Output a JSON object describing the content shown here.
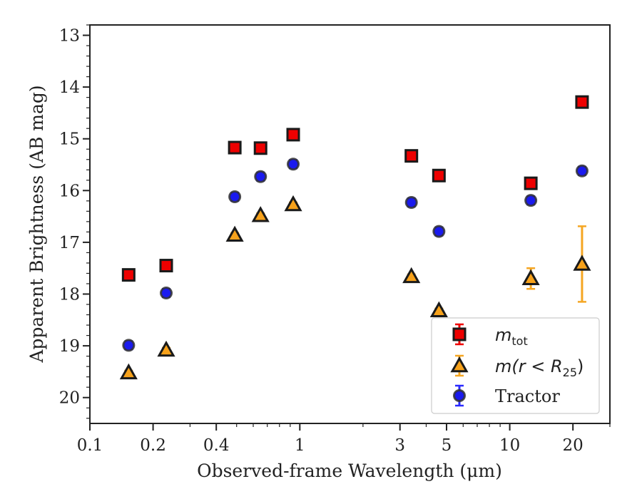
{
  "chart_data": {
    "type": "scatter",
    "title": "",
    "xlabel": "Observed-frame Wavelength (μm)",
    "ylabel": "Apparent Brightness (AB mag)",
    "xscale": "log",
    "xlim": [
      0.1,
      30
    ],
    "ylim": [
      20.5,
      12.8
    ],
    "y_inverted": true,
    "x_ticks": [
      0.1,
      0.2,
      0.4,
      1,
      3,
      5,
      10,
      20
    ],
    "x_tick_labels": [
      "0.1",
      "0.2",
      "0.4",
      "1",
      "3",
      "5",
      "10",
      "20"
    ],
    "y_ticks": [
      13,
      14,
      15,
      16,
      17,
      18,
      19,
      20
    ],
    "y_tick_labels": [
      "13",
      "14",
      "15",
      "16",
      "17",
      "18",
      "19",
      "20"
    ],
    "grid": false,
    "legend_position": "lower-right",
    "series": [
      {
        "name": "m_tot",
        "legend_main": "m",
        "legend_sub": "tot",
        "marker": "square",
        "color": "#ee0000",
        "error_color": "#ee0000",
        "points": [
          {
            "x": 0.153,
            "y": 17.63,
            "err": 0.05
          },
          {
            "x": 0.231,
            "y": 17.45,
            "err": 0.05
          },
          {
            "x": 0.49,
            "y": 15.17,
            "err": 0.05
          },
          {
            "x": 0.65,
            "y": 15.18,
            "err": 0.05
          },
          {
            "x": 0.93,
            "y": 14.92,
            "err": 0.05
          },
          {
            "x": 3.4,
            "y": 15.33,
            "err": 0.05
          },
          {
            "x": 4.6,
            "y": 15.71,
            "err": 0.05
          },
          {
            "x": 12.6,
            "y": 15.86,
            "err": 0.05
          },
          {
            "x": 22.1,
            "y": 14.29,
            "err": 0.05
          }
        ]
      },
      {
        "name": "m(r < R25)",
        "legend_main": "m(r < R",
        "legend_sub": "25",
        "legend_tail": ")",
        "marker": "triangle",
        "color": "#f7a21b",
        "error_color": "#f5a623",
        "points": [
          {
            "x": 0.153,
            "y": 19.52,
            "err": 0.04
          },
          {
            "x": 0.231,
            "y": 19.08,
            "err": 0.04
          },
          {
            "x": 0.49,
            "y": 16.86,
            "err": 0.04
          },
          {
            "x": 0.65,
            "y": 16.48,
            "err": 0.04
          },
          {
            "x": 0.93,
            "y": 16.27,
            "err": 0.04
          },
          {
            "x": 3.4,
            "y": 17.66,
            "err": 0.04
          },
          {
            "x": 4.6,
            "y": 18.32,
            "err": 0.04
          },
          {
            "x": 12.6,
            "y": 17.7,
            "err": 0.2
          },
          {
            "x": 22.1,
            "y": 17.42,
            "err": 0.73
          }
        ]
      },
      {
        "name": "Tractor",
        "marker": "circle",
        "color": "#1a1aee",
        "error_color": "#2a2aff",
        "points": [
          {
            "x": 0.153,
            "y": 18.99,
            "err": 0.08
          },
          {
            "x": 0.231,
            "y": 17.98,
            "err": 0.08
          },
          {
            "x": 0.49,
            "y": 16.12,
            "err": 0.08
          },
          {
            "x": 0.65,
            "y": 15.73,
            "err": 0.08
          },
          {
            "x": 0.93,
            "y": 15.49,
            "err": 0.08
          },
          {
            "x": 3.4,
            "y": 16.23,
            "err": 0.08
          },
          {
            "x": 4.6,
            "y": 16.79,
            "err": 0.08
          },
          {
            "x": 12.6,
            "y": 16.19,
            "err": 0.08
          },
          {
            "x": 22.1,
            "y": 15.62,
            "err": 0.08
          }
        ]
      }
    ]
  }
}
